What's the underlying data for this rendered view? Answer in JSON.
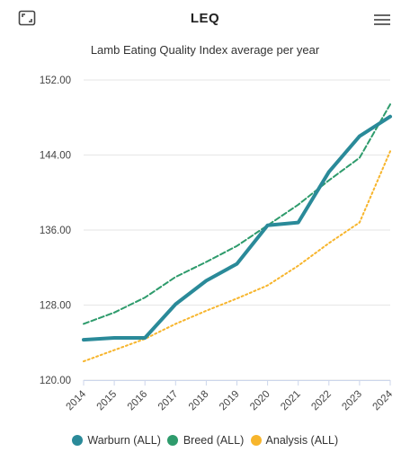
{
  "header": {
    "title": "LEQ",
    "expand_icon": "expand-icon",
    "menu_icon": "hamburger-menu-icon"
  },
  "chart_data": {
    "type": "line",
    "title": "Lamb Eating Quality Index average per year",
    "xlabel": "",
    "ylabel": "",
    "categories": [
      "2014",
      "2015",
      "2016",
      "2017",
      "2018",
      "2019",
      "2020",
      "2021",
      "2022",
      "2023",
      "2024"
    ],
    "yticks": [
      "120.00",
      "128.00",
      "136.00",
      "144.00",
      "152.00"
    ],
    "ylim": [
      120,
      152
    ],
    "grid": true,
    "legend_position": "bottom",
    "series": [
      {
        "name": "Warburn (ALL)",
        "color": "#2a8a99",
        "style": "solid",
        "values": [
          124.3,
          124.5,
          124.5,
          128.1,
          130.6,
          132.4,
          136.5,
          136.8,
          142.2,
          146.0,
          148.1
        ]
      },
      {
        "name": "Breed (ALL)",
        "color": "#2e9b6c",
        "style": "dashed",
        "values": [
          126.0,
          127.2,
          128.8,
          131.0,
          132.6,
          134.3,
          136.5,
          138.7,
          141.3,
          143.7,
          149.4
        ]
      },
      {
        "name": "Analysis (ALL)",
        "color": "#f7b52c",
        "style": "dotted",
        "values": [
          122.0,
          123.2,
          124.4,
          126.0,
          127.4,
          128.7,
          130.1,
          132.2,
          134.6,
          136.8,
          144.4
        ]
      }
    ]
  }
}
